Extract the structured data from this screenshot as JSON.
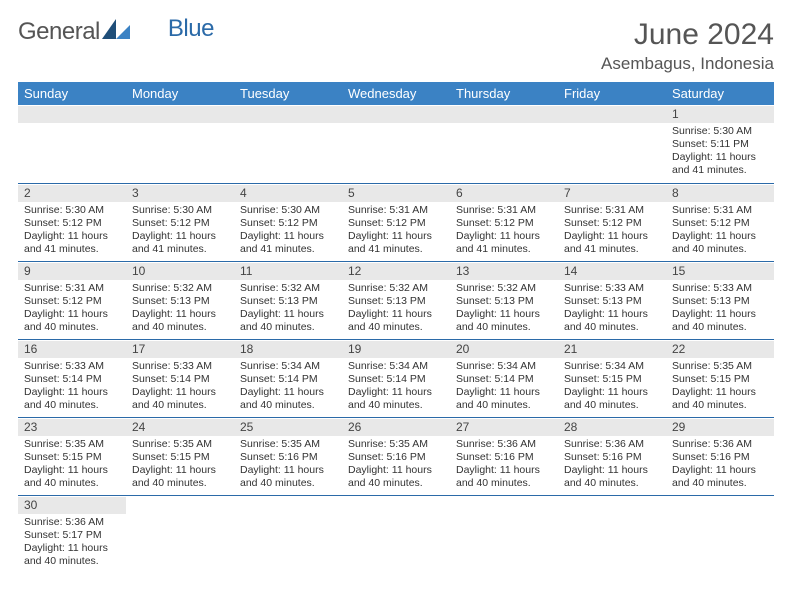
{
  "logo": {
    "general": "General",
    "blue": "Blue"
  },
  "title": "June 2024",
  "location": "Asembagus, Indonesia",
  "colors": {
    "header_bg": "#3b82c4",
    "header_text": "#ffffff",
    "daynum_bg": "#e8e8e8",
    "border": "#2b6aa8",
    "text": "#333333",
    "logo_blue": "#2b6aa8"
  },
  "day_headers": [
    "Sunday",
    "Monday",
    "Tuesday",
    "Wednesday",
    "Thursday",
    "Friday",
    "Saturday"
  ],
  "weeks": [
    [
      null,
      null,
      null,
      null,
      null,
      null,
      {
        "n": "1",
        "sunrise": "5:30 AM",
        "sunset": "5:11 PM",
        "daylight": "11 hours and 41 minutes."
      }
    ],
    [
      {
        "n": "2",
        "sunrise": "5:30 AM",
        "sunset": "5:12 PM",
        "daylight": "11 hours and 41 minutes."
      },
      {
        "n": "3",
        "sunrise": "5:30 AM",
        "sunset": "5:12 PM",
        "daylight": "11 hours and 41 minutes."
      },
      {
        "n": "4",
        "sunrise": "5:30 AM",
        "sunset": "5:12 PM",
        "daylight": "11 hours and 41 minutes."
      },
      {
        "n": "5",
        "sunrise": "5:31 AM",
        "sunset": "5:12 PM",
        "daylight": "11 hours and 41 minutes."
      },
      {
        "n": "6",
        "sunrise": "5:31 AM",
        "sunset": "5:12 PM",
        "daylight": "11 hours and 41 minutes."
      },
      {
        "n": "7",
        "sunrise": "5:31 AM",
        "sunset": "5:12 PM",
        "daylight": "11 hours and 41 minutes."
      },
      {
        "n": "8",
        "sunrise": "5:31 AM",
        "sunset": "5:12 PM",
        "daylight": "11 hours and 40 minutes."
      }
    ],
    [
      {
        "n": "9",
        "sunrise": "5:31 AM",
        "sunset": "5:12 PM",
        "daylight": "11 hours and 40 minutes."
      },
      {
        "n": "10",
        "sunrise": "5:32 AM",
        "sunset": "5:13 PM",
        "daylight": "11 hours and 40 minutes."
      },
      {
        "n": "11",
        "sunrise": "5:32 AM",
        "sunset": "5:13 PM",
        "daylight": "11 hours and 40 minutes."
      },
      {
        "n": "12",
        "sunrise": "5:32 AM",
        "sunset": "5:13 PM",
        "daylight": "11 hours and 40 minutes."
      },
      {
        "n": "13",
        "sunrise": "5:32 AM",
        "sunset": "5:13 PM",
        "daylight": "11 hours and 40 minutes."
      },
      {
        "n": "14",
        "sunrise": "5:33 AM",
        "sunset": "5:13 PM",
        "daylight": "11 hours and 40 minutes."
      },
      {
        "n": "15",
        "sunrise": "5:33 AM",
        "sunset": "5:13 PM",
        "daylight": "11 hours and 40 minutes."
      }
    ],
    [
      {
        "n": "16",
        "sunrise": "5:33 AM",
        "sunset": "5:14 PM",
        "daylight": "11 hours and 40 minutes."
      },
      {
        "n": "17",
        "sunrise": "5:33 AM",
        "sunset": "5:14 PM",
        "daylight": "11 hours and 40 minutes."
      },
      {
        "n": "18",
        "sunrise": "5:34 AM",
        "sunset": "5:14 PM",
        "daylight": "11 hours and 40 minutes."
      },
      {
        "n": "19",
        "sunrise": "5:34 AM",
        "sunset": "5:14 PM",
        "daylight": "11 hours and 40 minutes."
      },
      {
        "n": "20",
        "sunrise": "5:34 AM",
        "sunset": "5:14 PM",
        "daylight": "11 hours and 40 minutes."
      },
      {
        "n": "21",
        "sunrise": "5:34 AM",
        "sunset": "5:15 PM",
        "daylight": "11 hours and 40 minutes."
      },
      {
        "n": "22",
        "sunrise": "5:35 AM",
        "sunset": "5:15 PM",
        "daylight": "11 hours and 40 minutes."
      }
    ],
    [
      {
        "n": "23",
        "sunrise": "5:35 AM",
        "sunset": "5:15 PM",
        "daylight": "11 hours and 40 minutes."
      },
      {
        "n": "24",
        "sunrise": "5:35 AM",
        "sunset": "5:15 PM",
        "daylight": "11 hours and 40 minutes."
      },
      {
        "n": "25",
        "sunrise": "5:35 AM",
        "sunset": "5:16 PM",
        "daylight": "11 hours and 40 minutes."
      },
      {
        "n": "26",
        "sunrise": "5:35 AM",
        "sunset": "5:16 PM",
        "daylight": "11 hours and 40 minutes."
      },
      {
        "n": "27",
        "sunrise": "5:36 AM",
        "sunset": "5:16 PM",
        "daylight": "11 hours and 40 minutes."
      },
      {
        "n": "28",
        "sunrise": "5:36 AM",
        "sunset": "5:16 PM",
        "daylight": "11 hours and 40 minutes."
      },
      {
        "n": "29",
        "sunrise": "5:36 AM",
        "sunset": "5:16 PM",
        "daylight": "11 hours and 40 minutes."
      }
    ],
    [
      {
        "n": "30",
        "sunrise": "5:36 AM",
        "sunset": "5:17 PM",
        "daylight": "11 hours and 40 minutes."
      },
      null,
      null,
      null,
      null,
      null,
      null
    ]
  ],
  "labels": {
    "sunrise": "Sunrise: ",
    "sunset": "Sunset: ",
    "daylight": "Daylight: "
  }
}
